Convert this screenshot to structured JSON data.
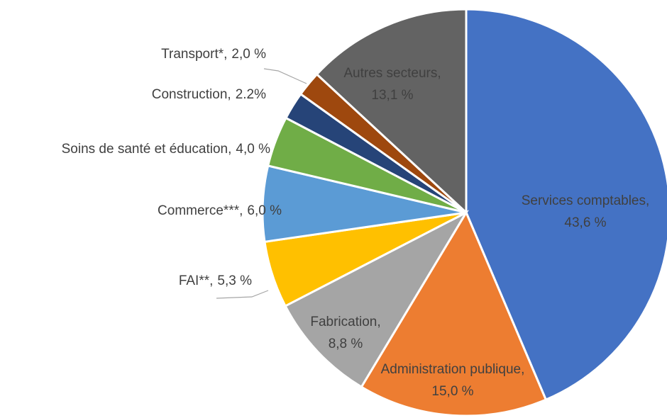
{
  "chart_data": {
    "type": "pie",
    "categories": [
      "Services comptables,",
      "Administration publique,",
      "Fabrication,",
      "FAI**,",
      "Commerce***,",
      "Soins de santé et éducation,",
      "Construction,",
      "Transport*,",
      "Autres secteurs,"
    ],
    "values": [
      43.6,
      15.0,
      8.8,
      5.3,
      6.0,
      4.0,
      2.2,
      2.0,
      13.1
    ],
    "value_labels": [
      "43,6 %",
      "15,0 %",
      "8,8 %",
      "5,3 %",
      "6,0 %",
      "4,0 %",
      "2.2%",
      "2,0 %",
      "13,1 %"
    ],
    "colors": [
      "#4472c4",
      "#ed7d31",
      "#a5a5a5",
      "#ffc000",
      "#5b9bd5",
      "#70ad47",
      "#264478",
      "#9e480e",
      "#636363"
    ]
  }
}
